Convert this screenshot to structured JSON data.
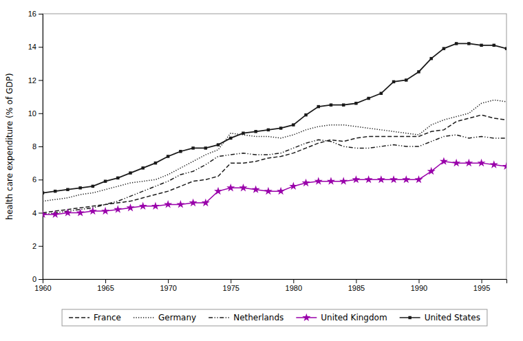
{
  "chart_data": {
    "type": "line",
    "y_label": "health care expenditure (% of GDP)",
    "x": [
      1960,
      1961,
      1962,
      1963,
      1964,
      1965,
      1966,
      1967,
      1968,
      1969,
      1970,
      1971,
      1972,
      1973,
      1974,
      1975,
      1976,
      1977,
      1978,
      1979,
      1980,
      1981,
      1982,
      1983,
      1984,
      1985,
      1986,
      1987,
      1988,
      1989,
      1990,
      1991,
      1992,
      1993,
      1994,
      1995,
      1996,
      1997
    ],
    "series": [
      {
        "name": "France",
        "color": "#1a1a1a",
        "line_style": "dashed",
        "marker": "none",
        "values": [
          4.0,
          4.1,
          4.2,
          4.3,
          4.4,
          4.5,
          4.6,
          4.7,
          4.9,
          5.1,
          5.3,
          5.6,
          5.9,
          6.0,
          6.2,
          7.0,
          7.0,
          7.1,
          7.3,
          7.4,
          7.6,
          7.9,
          8.2,
          8.4,
          8.3,
          8.5,
          8.6,
          8.6,
          8.6,
          8.6,
          8.6,
          8.9,
          9.0,
          9.5,
          9.7,
          9.9,
          9.7,
          9.6
        ]
      },
      {
        "name": "Germany",
        "color": "#1a1a1a",
        "line_style": "dotted",
        "marker": "none",
        "values": [
          4.7,
          4.8,
          4.9,
          5.1,
          5.2,
          5.4,
          5.6,
          5.8,
          5.9,
          6.0,
          6.3,
          6.7,
          7.1,
          7.5,
          7.8,
          8.8,
          8.7,
          8.6,
          8.6,
          8.5,
          8.7,
          9.0,
          9.2,
          9.3,
          9.3,
          9.2,
          9.1,
          9.0,
          8.9,
          8.8,
          8.7,
          9.3,
          9.6,
          9.8,
          10.0,
          10.6,
          10.8,
          10.7
        ]
      },
      {
        "name": "Netherlands",
        "color": "#1a1a1a",
        "line_style": "dashdotdot",
        "marker": "none",
        "values": [
          3.9,
          4.0,
          4.1,
          4.2,
          4.3,
          4.5,
          4.7,
          5.0,
          5.3,
          5.6,
          5.9,
          6.3,
          6.5,
          6.9,
          7.4,
          7.5,
          7.6,
          7.5,
          7.5,
          7.6,
          7.9,
          8.2,
          8.4,
          8.3,
          8.0,
          7.9,
          7.9,
          8.0,
          8.1,
          8.0,
          8.0,
          8.3,
          8.6,
          8.7,
          8.5,
          8.6,
          8.5,
          8.5
        ]
      },
      {
        "name": "United Kingdom",
        "color": "#9900aa",
        "line_style": "solid",
        "marker": "star",
        "values": [
          3.9,
          3.9,
          4.0,
          4.0,
          4.1,
          4.1,
          4.2,
          4.3,
          4.4,
          4.4,
          4.5,
          4.5,
          4.6,
          4.6,
          5.3,
          5.5,
          5.5,
          5.4,
          5.3,
          5.3,
          5.6,
          5.8,
          5.9,
          5.9,
          5.9,
          6.0,
          6.0,
          6.0,
          6.0,
          6.0,
          6.0,
          6.5,
          7.1,
          7.0,
          7.0,
          7.0,
          6.9,
          6.8
        ]
      },
      {
        "name": "United States",
        "color": "#1a1a1a",
        "line_style": "solid",
        "marker": "square",
        "values": [
          5.2,
          5.3,
          5.4,
          5.5,
          5.6,
          5.9,
          6.1,
          6.4,
          6.7,
          7.0,
          7.4,
          7.7,
          7.9,
          7.9,
          8.1,
          8.5,
          8.8,
          8.9,
          9.0,
          9.1,
          9.3,
          9.9,
          10.4,
          10.5,
          10.5,
          10.6,
          10.9,
          11.2,
          11.9,
          12.0,
          12.5,
          13.3,
          13.9,
          14.2,
          14.2,
          14.1,
          14.1,
          13.9
        ]
      }
    ],
    "xlim": [
      1960,
      1997
    ],
    "ylim": [
      0,
      16
    ],
    "xticks": [
      1960,
      1965,
      1970,
      1975,
      1980,
      1985,
      1990,
      1995
    ],
    "yticks": [
      0,
      2,
      4,
      6,
      8,
      10,
      12,
      14,
      16
    ],
    "grid": false,
    "legend": "bottom"
  }
}
